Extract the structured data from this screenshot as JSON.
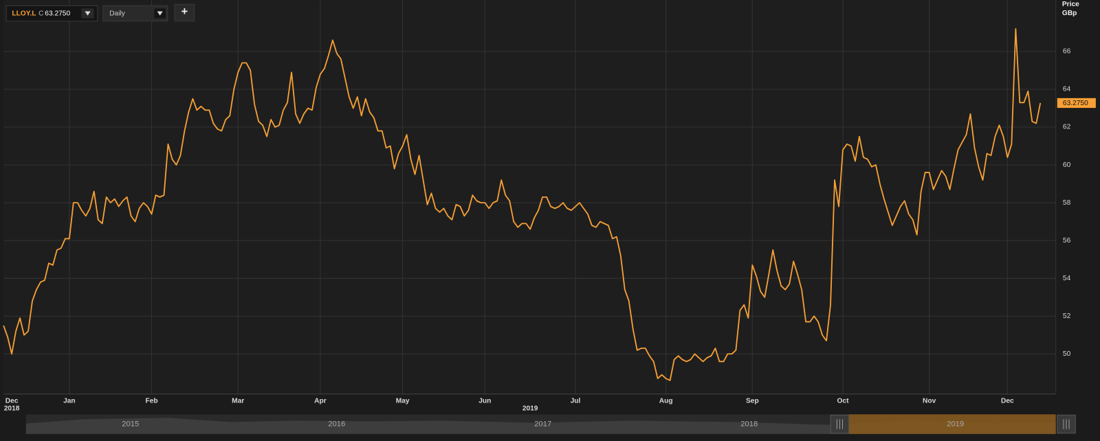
{
  "toolbar": {
    "ticker": "LLOY.L",
    "close_prefix": "C",
    "close_value": "63.2750",
    "interval": "Daily",
    "add_button": "+"
  },
  "chart_data": {
    "type": "line",
    "y_axis_title": "Price",
    "y_axis_unit": "GBp",
    "series": [
      {
        "name": "LLOY.L",
        "color": "#f7a035",
        "values": [
          51.5,
          50.9,
          50.0,
          51.2,
          51.9,
          51.0,
          51.2,
          52.8,
          53.4,
          53.8,
          53.9,
          54.8,
          54.7,
          55.5,
          55.6,
          56.1,
          56.1,
          58.0,
          58.0,
          57.6,
          57.3,
          57.7,
          58.6,
          57.1,
          56.9,
          58.3,
          58.0,
          58.2,
          57.8,
          58.1,
          58.3,
          57.3,
          57.0,
          57.7,
          58.0,
          57.8,
          57.4,
          58.4,
          58.3,
          58.4,
          61.1,
          60.3,
          60.0,
          60.5,
          61.8,
          62.8,
          63.5,
          62.9,
          63.1,
          62.9,
          62.9,
          62.2,
          61.9,
          61.8,
          62.4,
          62.6,
          64.0,
          64.9,
          65.4,
          65.4,
          65.0,
          63.2,
          62.3,
          62.1,
          61.5,
          62.4,
          62.0,
          62.1,
          62.9,
          63.3,
          64.9,
          62.7,
          62.2,
          62.7,
          63.0,
          62.9,
          64.1,
          64.8,
          65.1,
          65.8,
          66.6,
          65.9,
          65.6,
          64.6,
          63.6,
          63.0,
          63.6,
          62.6,
          63.5,
          62.8,
          62.5,
          61.8,
          61.8,
          60.9,
          61.0,
          59.8,
          60.6,
          61.0,
          61.6,
          60.3,
          59.5,
          60.5,
          59.2,
          57.9,
          58.5,
          57.7,
          57.5,
          57.7,
          57.3,
          57.1,
          57.9,
          57.8,
          57.3,
          57.6,
          58.4,
          58.1,
          58.0,
          58.0,
          57.7,
          58.0,
          58.1,
          59.2,
          58.4,
          58.1,
          57.0,
          56.7,
          56.9,
          56.9,
          56.6,
          57.2,
          57.6,
          58.3,
          58.3,
          57.8,
          57.7,
          57.8,
          58.0,
          57.7,
          57.6,
          57.8,
          58.0,
          57.7,
          57.4,
          56.8,
          56.7,
          57.0,
          56.9,
          56.8,
          56.1,
          56.2,
          55.2,
          53.4,
          52.8,
          51.3,
          50.2,
          50.3,
          50.3,
          49.9,
          49.6,
          48.7,
          48.9,
          48.7,
          48.6,
          49.7,
          49.9,
          49.7,
          49.6,
          49.7,
          50.0,
          49.8,
          49.6,
          49.8,
          49.9,
          50.3,
          49.6,
          49.6,
          50.0,
          50.0,
          50.2,
          52.3,
          52.6,
          51.9,
          54.7,
          54.1,
          53.3,
          53.0,
          54.2,
          55.5,
          54.4,
          53.6,
          53.4,
          53.7,
          54.9,
          54.2,
          53.4,
          51.7,
          51.7,
          52.0,
          51.7,
          51.0,
          50.7,
          52.6,
          59.2,
          57.8,
          60.8,
          61.1,
          61.0,
          60.2,
          61.5,
          60.4,
          60.3,
          59.9,
          60.0,
          59.0,
          58.2,
          57.5,
          56.8,
          57.3,
          57.8,
          58.1,
          57.4,
          57.1,
          56.3,
          58.6,
          59.6,
          59.6,
          58.7,
          59.2,
          59.7,
          59.4,
          58.7,
          59.8,
          60.8,
          61.2,
          61.6,
          62.7,
          60.9,
          59.9,
          59.2,
          60.6,
          60.5,
          61.5,
          62.1,
          61.5,
          60.4,
          61.1,
          67.2,
          63.3,
          63.3,
          63.9,
          62.3,
          62.2,
          63.275
        ]
      }
    ],
    "ylim": [
      47.88,
      68.72
    ],
    "yticks": [
      50,
      52,
      54,
      56,
      58,
      60,
      62,
      64,
      66
    ],
    "xticks": [
      {
        "value": 2,
        "label": "Dec"
      },
      {
        "value": 16,
        "label": "Jan"
      },
      {
        "value": 36,
        "label": "Feb"
      },
      {
        "value": 57,
        "label": "Mar"
      },
      {
        "value": 77,
        "label": "Apr"
      },
      {
        "value": 97,
        "label": "May"
      },
      {
        "value": 117,
        "label": "Jun"
      },
      {
        "value": 139,
        "label": "Jul"
      },
      {
        "value": 161,
        "label": "Aug"
      },
      {
        "value": 182,
        "label": "Sep"
      },
      {
        "value": 204,
        "label": "Oct"
      },
      {
        "value": 225,
        "label": "Nov"
      },
      {
        "value": 244,
        "label": "Dec"
      }
    ],
    "year_ticks": [
      {
        "value": 2,
        "label": "2018"
      },
      {
        "value": 128,
        "label": "2019"
      }
    ],
    "last_price": {
      "value": 63.275,
      "label": "63.2750"
    },
    "grid": true
  },
  "navigator": {
    "years": [
      "2015",
      "2016",
      "2017",
      "2018",
      "2019"
    ]
  }
}
